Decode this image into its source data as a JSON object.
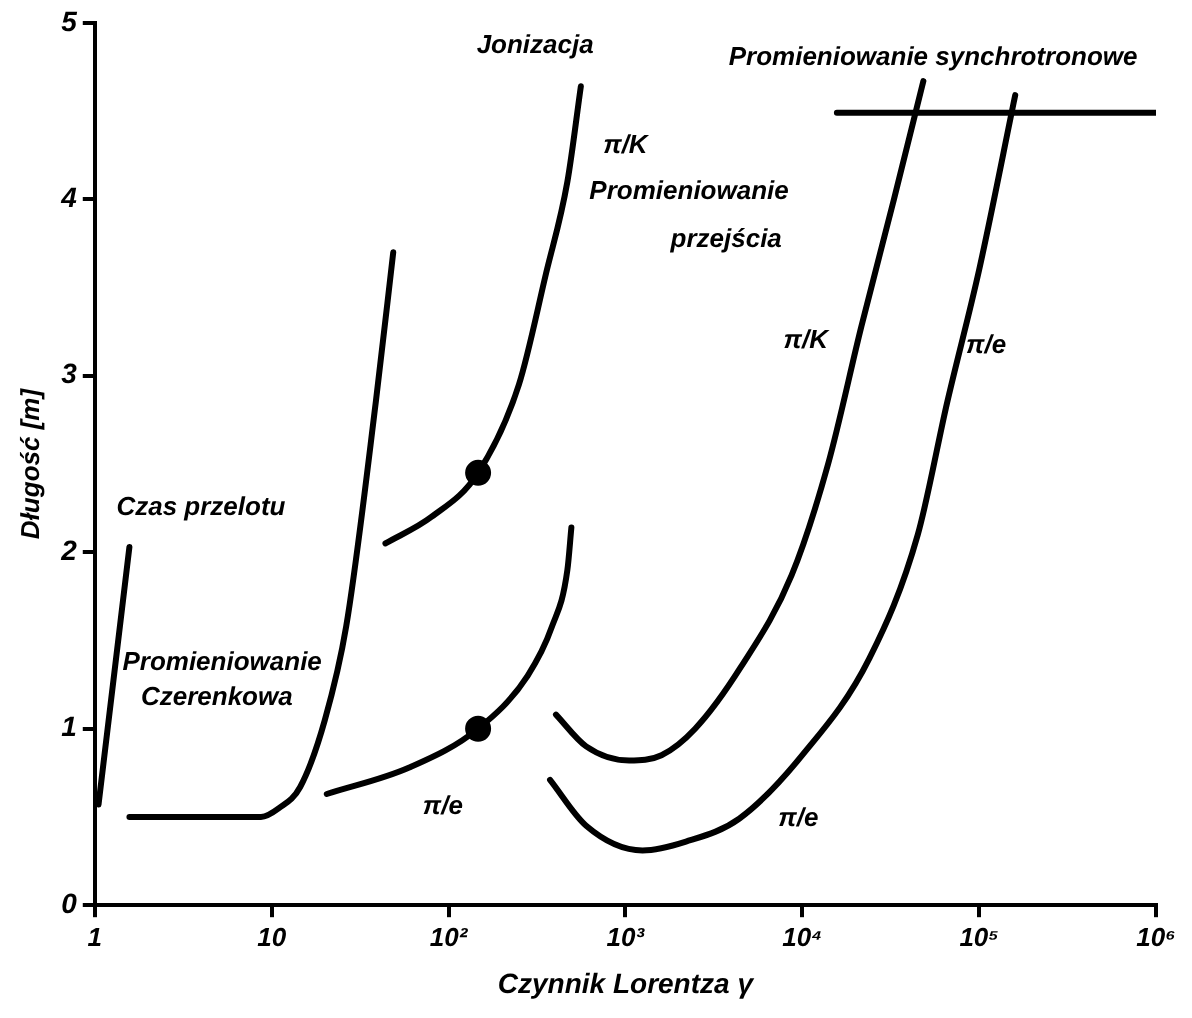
{
  "chart_data": {
    "type": "line",
    "xlabel": "Czynnik Lorentza γ",
    "ylabel": "Długość [m]",
    "log": "x",
    "xlim": [
      1,
      1000000
    ],
    "ylim": [
      0,
      5
    ],
    "xticks": [
      1,
      10,
      {
        "value": 100,
        "label": "10²"
      },
      {
        "value": 1000,
        "label": "10³"
      },
      {
        "value": 10000,
        "label": "10⁴"
      },
      {
        "value": 100000,
        "label": "10⁵"
      },
      {
        "value": 1000000,
        "label": "10⁶"
      }
    ],
    "yticks": [
      0,
      1,
      2,
      3,
      4,
      5
    ],
    "grid": false,
    "legend": false,
    "series": [
      {
        "color": "#000000",
        "x": [
          1.05,
          1.57
        ],
        "values": [
          0.57,
          2.03
        ]
      },
      {
        "color": "#000000",
        "x": [
          1.57,
          8.7,
          11,
          14.5,
          20,
          26.4,
          38.8,
          48.7
        ],
        "values": [
          0.5,
          0.5,
          0.55,
          0.67,
          1.05,
          1.58,
          2.85,
          3.7
        ]
      },
      {
        "color": "#000000",
        "x": [
          44,
          80,
          147,
          250,
          356,
          470,
          560
        ],
        "values": [
          2.05,
          2.2,
          2.45,
          2.95,
          3.58,
          4.1,
          4.64
        ]
      },
      {
        "color": "#000000",
        "x": [
          20.5,
          60,
          147,
          280,
          385,
          470,
          495
        ],
        "values": [
          0.63,
          0.78,
          1.0,
          1.3,
          1.58,
          1.9,
          2.14
        ]
      },
      {
        "color": "#000000",
        "x": [
          405,
          600,
          1050,
          1600,
          2480,
          4500,
          8710,
          14000,
          21600,
          33000,
          48400
        ],
        "values": [
          1.08,
          0.9,
          0.82,
          0.85,
          1.0,
          1.35,
          1.87,
          2.5,
          3.28,
          4.0,
          4.67
        ]
      },
      {
        "color": "#000000",
        "x": [
          375,
          600,
          1250,
          2200,
          4400,
          10000,
          24000,
          45000,
          66000,
          100000,
          160000
        ],
        "values": [
          0.71,
          0.45,
          0.31,
          0.36,
          0.49,
          0.85,
          1.4,
          2.1,
          2.85,
          3.6,
          4.59
        ]
      },
      {
        "color": "#000000",
        "x": [
          15700,
          1000000
        ],
        "values": [
          4.49,
          4.49
        ]
      },
      {
        "type": "scatter",
        "color": "#000000",
        "marker": "circle",
        "x": [
          147,
          147
        ],
        "values": [
          2.45,
          1.0
        ]
      }
    ],
    "annotations": [
      "Czas przelotu",
      "Promieniowanie",
      "Czerenkowa",
      "Jonizacja",
      "π/K",
      "Promieniowanie",
      "przejścia",
      "π/K",
      "π/e",
      "π/e",
      "π/e",
      "Promieniowanie synchrotronowe"
    ]
  }
}
